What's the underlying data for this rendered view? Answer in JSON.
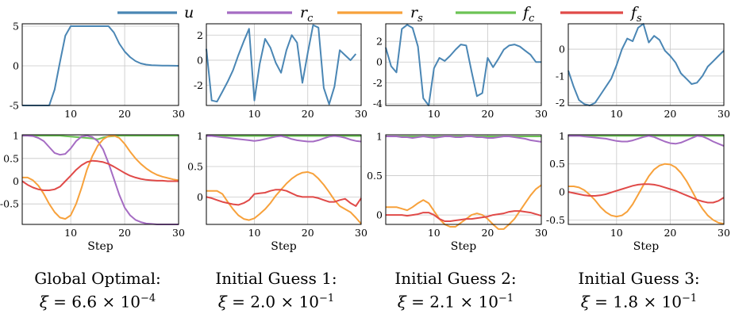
{
  "colors": {
    "u": "#4a86b4",
    "r_c": "#a56cc3",
    "r_s": "#f7a13b",
    "f_c": "#6cc355",
    "f_s": "#e04a48"
  },
  "legend": [
    {
      "key": "u",
      "label": "u",
      "sub": ""
    },
    {
      "key": "r_c",
      "label": "r",
      "sub": "c"
    },
    {
      "key": "r_s",
      "label": "r",
      "sub": "s"
    },
    {
      "key": "f_c",
      "label": "f",
      "sub": "c"
    },
    {
      "key": "f_s",
      "label": "f",
      "sub": "s"
    }
  ],
  "captions": [
    {
      "title": "Global Optimal:",
      "xi_mant": "6.6",
      "xi_exp": "−4"
    },
    {
      "title": "Initial Guess 1:",
      "xi_mant": "2.0",
      "xi_exp": "−1"
    },
    {
      "title": "Initial Guess 2:",
      "xi_mant": "2.1",
      "xi_exp": "−1"
    },
    {
      "title": "Initial Guess 3:",
      "xi_mant": "1.8",
      "xi_exp": "−1"
    }
  ],
  "chart_data": [
    {
      "type": "line",
      "panel": "top",
      "column": 0,
      "x": [
        1,
        2,
        3,
        4,
        5,
        6,
        7,
        8,
        9,
        10,
        11,
        12,
        13,
        14,
        15,
        16,
        17,
        18,
        19,
        20,
        21,
        22,
        23,
        24,
        25,
        26,
        27,
        28,
        29,
        30
      ],
      "xlim": [
        1,
        30
      ],
      "ylim": [
        -5,
        5.3
      ],
      "xticks": [
        "10",
        "20",
        "30"
      ],
      "yticks": [
        "-5",
        "0",
        "5"
      ],
      "ytick_values": [
        -5,
        0,
        5
      ],
      "series": [
        {
          "key": "u",
          "values": [
            -5,
            -5,
            -5,
            -5,
            -5,
            -5,
            -3,
            0.5,
            3.8,
            5,
            5,
            5,
            5,
            5,
            5,
            5,
            5,
            4.2,
            2.8,
            1.8,
            1.1,
            0.6,
            0.3,
            0.15,
            0.08,
            0.05,
            0.03,
            0.02,
            0.01,
            0
          ]
        }
      ]
    },
    {
      "type": "line",
      "panel": "top",
      "column": 1,
      "x": [
        1,
        2,
        3,
        4,
        5,
        6,
        7,
        8,
        9,
        10,
        11,
        12,
        13,
        14,
        15,
        16,
        17,
        18,
        19,
        20,
        21,
        22,
        23,
        24,
        25,
        26,
        27,
        28,
        29,
        30
      ],
      "xlim": [
        1,
        30
      ],
      "ylim": [
        -3.6,
        2.9
      ],
      "xticks": [
        "10",
        "20",
        "30"
      ],
      "yticks": [
        "-2",
        "0",
        "2"
      ],
      "ytick_values": [
        -2,
        0,
        2
      ],
      "series": [
        {
          "key": "u",
          "values": [
            0.9,
            -3.2,
            -3.3,
            -2.5,
            -1.7,
            -0.8,
            0.4,
            1.5,
            2.5,
            -3.2,
            -0.3,
            1.7,
            1.0,
            -0.2,
            -1.0,
            0.8,
            2.0,
            1.4,
            -1.8,
            0.6,
            2.8,
            2.6,
            -2.2,
            -3.5,
            -2.1,
            0.8,
            0.4,
            0.0,
            0.5,
            null
          ]
        }
      ]
    },
    {
      "type": "line",
      "panel": "top",
      "column": 2,
      "x": [
        1,
        2,
        3,
        4,
        5,
        6,
        7,
        8,
        9,
        10,
        11,
        12,
        13,
        14,
        15,
        16,
        17,
        18,
        19,
        20,
        21,
        22,
        23,
        24,
        25,
        26,
        27,
        28,
        29,
        30
      ],
      "xlim": [
        1,
        30
      ],
      "ylim": [
        -4.2,
        3.7
      ],
      "xticks": [
        "10",
        "20",
        "30"
      ],
      "yticks": [
        "-4",
        "-2",
        "0",
        "2"
      ],
      "ytick_values": [
        -4,
        -2,
        0,
        2
      ],
      "series": [
        {
          "key": "u",
          "values": [
            1.4,
            -0.4,
            -1.0,
            3.2,
            3.6,
            3.3,
            1.5,
            -3.5,
            -4.2,
            -0.6,
            0.4,
            0.1,
            0.6,
            1.2,
            1.7,
            1.6,
            -0.9,
            -3.3,
            -3.0,
            0.4,
            -0.5,
            0.3,
            1.2,
            1.6,
            1.7,
            1.5,
            1.1,
            0.7,
            0.0,
            0.0
          ]
        }
      ]
    },
    {
      "type": "line",
      "panel": "top",
      "column": 3,
      "x": [
        1,
        2,
        3,
        4,
        5,
        6,
        7,
        8,
        9,
        10,
        11,
        12,
        13,
        14,
        15,
        16,
        17,
        18,
        19,
        20,
        21,
        22,
        23,
        24,
        25,
        26,
        27,
        28,
        29,
        30
      ],
      "xlim": [
        1,
        30
      ],
      "ylim": [
        -2.1,
        0.95
      ],
      "xticks": [
        "10",
        "20",
        "30"
      ],
      "yticks": [
        "-2",
        "-1",
        "0"
      ],
      "ytick_values": [
        -2,
        -1,
        0
      ],
      "series": [
        {
          "key": "u",
          "values": [
            -0.8,
            -1.4,
            -1.9,
            -2.05,
            -2.1,
            -2.0,
            -1.7,
            -1.4,
            -1.1,
            -0.6,
            0.0,
            0.4,
            0.3,
            0.8,
            0.95,
            0.25,
            0.5,
            0.35,
            -0.05,
            -0.25,
            -0.5,
            -0.9,
            -1.1,
            -1.3,
            -1.25,
            -1.0,
            -0.65,
            -0.45,
            -0.25,
            -0.05
          ]
        }
      ]
    },
    {
      "type": "line",
      "panel": "bottom",
      "column": 0,
      "x": [
        1,
        2,
        3,
        4,
        5,
        6,
        7,
        8,
        9,
        10,
        11,
        12,
        13,
        14,
        15,
        16,
        17,
        18,
        19,
        20,
        21,
        22,
        23,
        24,
        25,
        26,
        27,
        28,
        29,
        30
      ],
      "xlim": [
        1,
        30
      ],
      "ylim": [
        -0.95,
        1.02
      ],
      "xlabel": "Step",
      "xticks": [
        "10",
        "20",
        "30"
      ],
      "yticks": [
        "1",
        "0.5",
        "0",
        "-0.5"
      ],
      "ytick_values": [
        1,
        0.5,
        0,
        -0.5
      ],
      "series": [
        {
          "key": "f_c",
          "values": [
            1,
            1,
            1,
            1,
            1,
            1,
            1,
            1,
            0.99,
            0.98,
            0.97,
            0.96,
            0.95,
            0.94,
            0.92,
            0.96,
            0.98,
            0.99,
            1,
            1,
            1,
            1,
            1,
            1,
            1,
            1,
            1,
            1,
            1,
            1
          ]
        },
        {
          "key": "r_c",
          "values": [
            1,
            1,
            0.99,
            0.95,
            0.88,
            0.75,
            0.62,
            0.58,
            0.6,
            0.72,
            0.88,
            0.98,
            1,
            0.97,
            0.88,
            0.7,
            0.4,
            0.05,
            -0.3,
            -0.58,
            -0.75,
            -0.85,
            -0.9,
            -0.93,
            -0.94,
            -0.95,
            -0.95,
            -0.95,
            -0.95,
            -0.95
          ]
        },
        {
          "key": "r_s",
          "values": [
            0.08,
            0.08,
            0.02,
            -0.1,
            -0.28,
            -0.5,
            -0.68,
            -0.8,
            -0.83,
            -0.75,
            -0.5,
            -0.15,
            0.25,
            0.55,
            0.78,
            0.92,
            0.99,
            1,
            0.95,
            0.82,
            0.65,
            0.5,
            0.38,
            0.28,
            0.2,
            0.14,
            0.1,
            0.07,
            0.04,
            0.02
          ]
        },
        {
          "key": "f_s",
          "values": [
            0,
            -0.08,
            -0.14,
            -0.18,
            -0.2,
            -0.2,
            -0.18,
            -0.12,
            0,
            0.12,
            0.25,
            0.35,
            0.42,
            0.45,
            0.44,
            0.42,
            0.38,
            0.32,
            0.25,
            0.18,
            0.12,
            0.08,
            0.05,
            0.03,
            0.02,
            0.01,
            0.01,
            0,
            0,
            0
          ]
        }
      ]
    },
    {
      "type": "line",
      "panel": "bottom",
      "column": 1,
      "x": [
        1,
        2,
        3,
        4,
        5,
        6,
        7,
        8,
        9,
        10,
        11,
        12,
        13,
        14,
        15,
        16,
        17,
        18,
        19,
        20,
        21,
        22,
        23,
        24,
        25,
        26,
        27,
        28,
        29,
        30
      ],
      "xlim": [
        1,
        30
      ],
      "ylim": [
        -0.45,
        1.02
      ],
      "xlabel": "Step",
      "xticks": [
        "10",
        "20",
        "30"
      ],
      "yticks": [
        "1",
        "0.5",
        "0"
      ],
      "ytick_values": [
        1,
        0.5,
        0
      ],
      "series": [
        {
          "key": "f_c",
          "values": [
            1,
            1,
            1,
            1,
            1,
            1,
            1,
            1,
            1,
            1,
            1,
            1,
            1,
            1,
            1,
            1,
            1,
            1,
            1,
            1,
            1,
            1,
            1,
            1,
            1,
            1,
            1,
            1,
            1,
            1
          ]
        },
        {
          "key": "r_c",
          "values": [
            1,
            1,
            0.99,
            0.98,
            0.97,
            0.96,
            0.95,
            0.94,
            0.93,
            0.92,
            0.93,
            0.95,
            0.97,
            0.99,
            1,
            0.98,
            0.95,
            0.93,
            0.92,
            0.91,
            0.91,
            0.93,
            0.96,
            0.99,
            1,
            0.99,
            0.97,
            0.94,
            0.92,
            0.91
          ]
        },
        {
          "key": "r_s",
          "values": [
            0.1,
            0.1,
            0.1,
            0.05,
            -0.08,
            -0.2,
            -0.3,
            -0.36,
            -0.38,
            -0.35,
            -0.28,
            -0.2,
            -0.1,
            0.02,
            0.12,
            0.22,
            0.3,
            0.36,
            0.4,
            0.41,
            0.38,
            0.3,
            0.2,
            0.08,
            -0.05,
            -0.15,
            -0.2,
            -0.25,
            -0.34,
            -0.44
          ]
        },
        {
          "key": "f_s",
          "values": [
            0,
            -0.02,
            -0.05,
            -0.08,
            -0.1,
            -0.12,
            -0.13,
            -0.1,
            -0.05,
            0.05,
            0.06,
            0.07,
            0.1,
            0.12,
            0.12,
            0.1,
            0.06,
            0.02,
            0,
            0,
            0,
            -0.02,
            -0.05,
            -0.08,
            -0.08,
            -0.05,
            -0.03,
            -0.1,
            -0.15,
            -0.02
          ]
        }
      ]
    },
    {
      "type": "line",
      "panel": "bottom",
      "column": 2,
      "x": [
        1,
        2,
        3,
        4,
        5,
        6,
        7,
        8,
        9,
        10,
        11,
        12,
        13,
        14,
        15,
        16,
        17,
        18,
        19,
        20,
        21,
        22,
        23,
        24,
        25,
        26,
        27,
        28,
        29,
        30
      ],
      "xlim": [
        1,
        30
      ],
      "ylim": [
        -0.12,
        1.02
      ],
      "xlabel": "Step",
      "xticks": [
        "10",
        "20",
        "30"
      ],
      "yticks": [
        "1",
        "0.5",
        "0"
      ],
      "ytick_values": [
        1,
        0.5,
        0
      ],
      "series": [
        {
          "key": "f_c",
          "values": [
            1,
            1,
            1,
            1,
            1,
            1,
            1,
            1,
            1,
            1,
            1,
            1,
            1,
            1,
            1,
            1,
            1,
            1,
            1,
            1,
            1,
            1,
            1,
            1,
            1,
            1,
            1,
            1,
            1,
            1
          ]
        },
        {
          "key": "r_c",
          "values": [
            1,
            1,
            1,
            0.99,
            0.99,
            0.98,
            0.99,
            1,
            0.99,
            0.98,
            0.99,
            1,
            1,
            0.99,
            0.99,
            1,
            1,
            0.99,
            0.99,
            0.98,
            0.98,
            0.99,
            1,
            1,
            0.99,
            0.98,
            0.97,
            0.95,
            0.94,
            0.93
          ]
        },
        {
          "key": "r_s",
          "values": [
            0.1,
            0.1,
            0.1,
            0.08,
            0.06,
            0.1,
            0.15,
            0.19,
            0.15,
            0.05,
            -0.05,
            -0.12,
            -0.15,
            -0.15,
            -0.1,
            -0.05,
            0,
            0.02,
            0,
            -0.05,
            -0.12,
            -0.18,
            -0.18,
            -0.12,
            -0.05,
            0.05,
            0.15,
            0.25,
            0.33,
            0.38
          ]
        },
        {
          "key": "f_s",
          "values": [
            0,
            0,
            0,
            0,
            -0.01,
            0,
            0.01,
            0.03,
            0.03,
            0,
            -0.05,
            -0.08,
            -0.08,
            -0.07,
            -0.06,
            -0.05,
            -0.05,
            -0.04,
            -0.03,
            -0.02,
            0,
            0.01,
            0.02,
            0.04,
            0.05,
            0.05,
            0.04,
            0.03,
            0.01,
            -0.01
          ]
        }
      ]
    },
    {
      "type": "line",
      "panel": "bottom",
      "column": 3,
      "x": [
        1,
        2,
        3,
        4,
        5,
        6,
        7,
        8,
        9,
        10,
        11,
        12,
        13,
        14,
        15,
        16,
        17,
        18,
        19,
        20,
        21,
        22,
        23,
        24,
        25,
        26,
        27,
        28,
        29,
        30
      ],
      "xlim": [
        1,
        30
      ],
      "ylim": [
        -0.58,
        1.02
      ],
      "xlabel": "Step",
      "xticks": [
        "10",
        "20",
        "30"
      ],
      "yticks": [
        "1",
        "0.5",
        "0",
        "-0.5"
      ],
      "ytick_values": [
        1,
        0.5,
        0,
        -0.5
      ],
      "series": [
        {
          "key": "f_c",
          "values": [
            1,
            1,
            1,
            1,
            1,
            1,
            1,
            1,
            1,
            1,
            1,
            1,
            1,
            1,
            1,
            1,
            1,
            1,
            1,
            1,
            1,
            1,
            1,
            1,
            1,
            1,
            1,
            1,
            1,
            1
          ]
        },
        {
          "key": "r_c",
          "values": [
            1,
            1,
            1,
            0.99,
            0.98,
            0.97,
            0.96,
            0.95,
            0.93,
            0.91,
            0.9,
            0.9,
            0.92,
            0.95,
            0.98,
            1,
            0.98,
            0.94,
            0.9,
            0.87,
            0.86,
            0.88,
            0.92,
            0.96,
            1,
            0.99,
            0.95,
            0.9,
            0.86,
            0.82
          ]
        },
        {
          "key": "r_s",
          "values": [
            0.1,
            0.1,
            0.08,
            0.03,
            -0.05,
            -0.15,
            -0.27,
            -0.36,
            -0.42,
            -0.44,
            -0.42,
            -0.35,
            -0.22,
            -0.05,
            0.12,
            0.28,
            0.4,
            0.47,
            0.5,
            0.49,
            0.44,
            0.34,
            0.2,
            0.03,
            -0.15,
            -0.3,
            -0.42,
            -0.5,
            -0.55,
            -0.57
          ]
        },
        {
          "key": "f_s",
          "values": [
            0,
            -0.02,
            -0.04,
            -0.06,
            -0.07,
            -0.07,
            -0.06,
            -0.04,
            -0.01,
            0.02,
            0.05,
            0.08,
            0.11,
            0.13,
            0.14,
            0.14,
            0.13,
            0.11,
            0.08,
            0.05,
            0.02,
            -0.02,
            -0.06,
            -0.1,
            -0.14,
            -0.17,
            -0.19,
            -0.19,
            -0.16,
            -0.1
          ]
        }
      ]
    }
  ]
}
